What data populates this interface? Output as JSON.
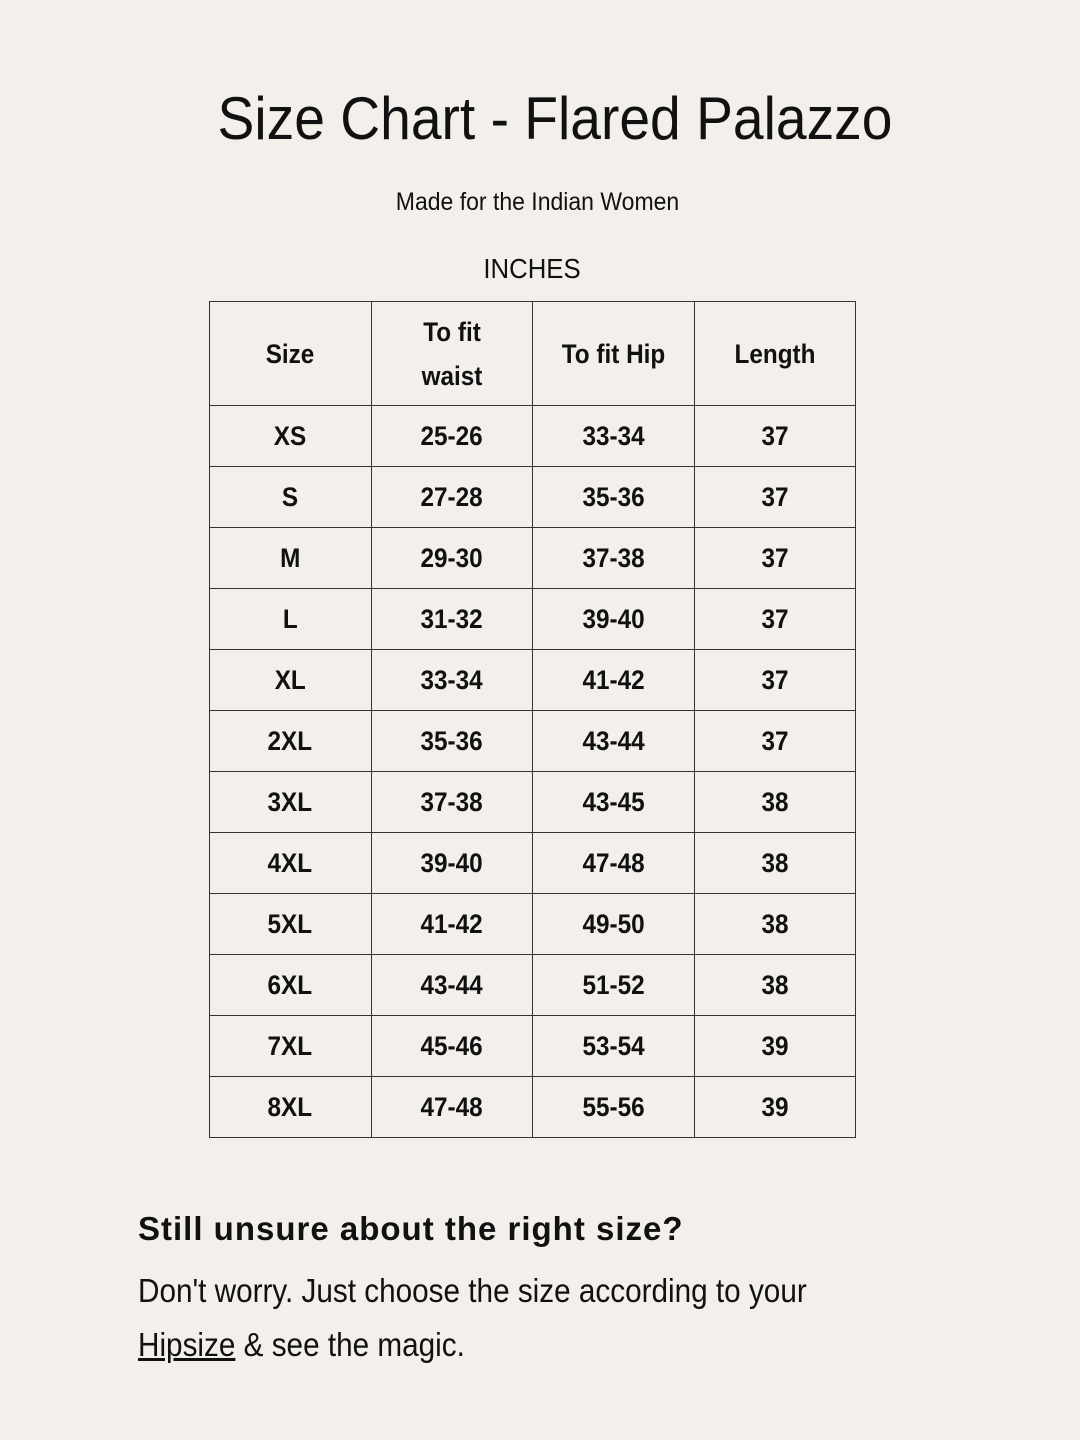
{
  "title": "Size Chart - Flared Palazzo",
  "subtitle": "Made for the Indian Women",
  "unit": "INCHES",
  "table": {
    "headers": [
      "Size",
      "To fit waist",
      "To fit Hip",
      "Length"
    ],
    "rows": [
      [
        "XS",
        "25-26",
        "33-34",
        "37"
      ],
      [
        "S",
        "27-28",
        "35-36",
        "37"
      ],
      [
        "M",
        "29-30",
        "37-38",
        "37"
      ],
      [
        "L",
        "31-32",
        "39-40",
        "37"
      ],
      [
        "XL",
        "33-34",
        "41-42",
        "37"
      ],
      [
        "2XL",
        "35-36",
        "43-44",
        "37"
      ],
      [
        "3XL",
        "37-38",
        "43-45",
        "38"
      ],
      [
        "4XL",
        "39-40",
        "47-48",
        "38"
      ],
      [
        "5XL",
        "41-42",
        "49-50",
        "38"
      ],
      [
        "6XL",
        "43-44",
        "51-52",
        "38"
      ],
      [
        "7XL",
        "45-46",
        "53-54",
        "39"
      ],
      [
        "8XL",
        "47-48",
        "55-56",
        "39"
      ]
    ]
  },
  "footer": {
    "question": "Still unsure about the right size?",
    "line1": "Don't worry. Just choose the size according to your",
    "link": "Hipsize",
    "line2_rest": " & see the magic."
  }
}
